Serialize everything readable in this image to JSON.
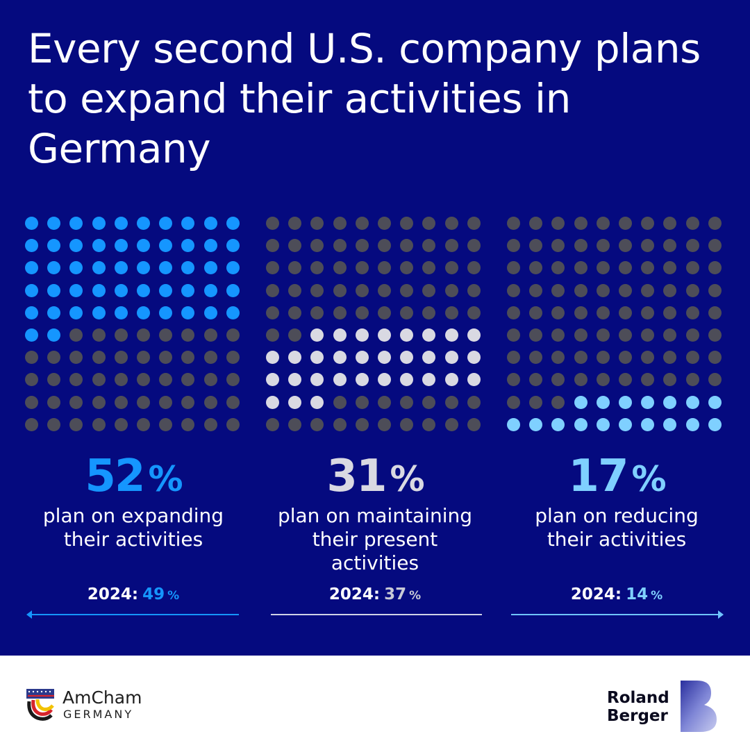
{
  "title": "Every second U.S. company plans to expand their activities in Germany",
  "chart_data": [
    {
      "type": "waffle",
      "grid": [
        10,
        10
      ],
      "value": 52,
      "value_label": "52",
      "unit": "%",
      "description": "plan on expanding their activities",
      "fill_from": "top",
      "color": "#1596ff",
      "previous_year_label": "2024:",
      "previous_value": "49",
      "previous_unit": "%"
    },
    {
      "type": "waffle",
      "grid": [
        10,
        10
      ],
      "value": 31,
      "offset": 52,
      "value_label": "31",
      "unit": "%",
      "description": "plan on maintaining their present activities",
      "fill_from": "top",
      "color": "#d9d9e2",
      "previous_year_label": "2024:",
      "previous_value": "37",
      "previous_unit": "%"
    },
    {
      "type": "waffle",
      "grid": [
        10,
        10
      ],
      "value": 17,
      "value_label": "17",
      "unit": "%",
      "description": "plan on reducing their activities",
      "fill_from": "bottom",
      "color": "#7fd0ff",
      "previous_year_label": "2024:",
      "previous_value": "14",
      "previous_unit": "%"
    }
  ],
  "colors": {
    "background": "#050a7f",
    "empty_dot": "#4d4d58",
    "prev_value_1": "#1596ff",
    "prev_value_2": "#c8cad6",
    "prev_value_3": "#7fd0ff"
  },
  "footer": {
    "left_logo_line1": "AmCham",
    "left_logo_line2": "GERMANY",
    "right_logo_line1": "Roland",
    "right_logo_line2": "Berger"
  }
}
